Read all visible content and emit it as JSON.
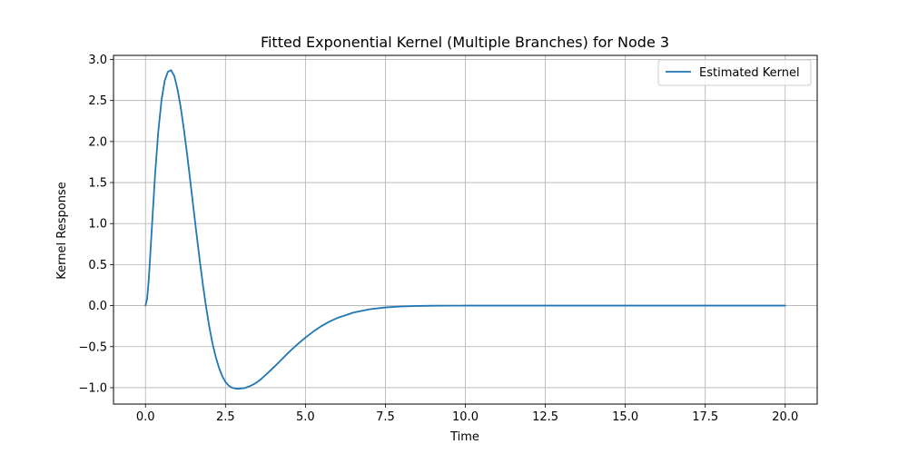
{
  "chart_data": {
    "type": "line",
    "title": "Fitted Exponential Kernel (Multiple Branches) for Node 3",
    "xlabel": "Time",
    "ylabel": "Kernel Response",
    "xlim": [
      -1.0,
      21.0
    ],
    "ylim": [
      -1.2,
      3.05
    ],
    "xticks": [
      0.0,
      2.5,
      5.0,
      7.5,
      10.0,
      12.5,
      15.0,
      17.5,
      20.0
    ],
    "xtick_labels": [
      "0.0",
      "2.5",
      "5.0",
      "7.5",
      "10.0",
      "12.5",
      "15.0",
      "17.5",
      "20.0"
    ],
    "yticks": [
      -1.0,
      -0.5,
      0.0,
      0.5,
      1.0,
      1.5,
      2.0,
      2.5,
      3.0
    ],
    "ytick_labels": [
      "−1.0",
      "−0.5",
      "0.0",
      "0.5",
      "1.0",
      "1.5",
      "2.0",
      "2.5",
      "3.0"
    ],
    "grid": true,
    "legend_position": "top-right",
    "series": [
      {
        "name": "Estimated Kernel",
        "color": "#1f77b4",
        "x": [
          0.0,
          0.05,
          0.1,
          0.2,
          0.3,
          0.4,
          0.5,
          0.6,
          0.7,
          0.8,
          0.9,
          1.0,
          1.1,
          1.2,
          1.3,
          1.4,
          1.5,
          1.6,
          1.7,
          1.8,
          1.9,
          2.0,
          2.1,
          2.2,
          2.3,
          2.4,
          2.5,
          2.6,
          2.7,
          2.8,
          2.9,
          3.0,
          3.1,
          3.2,
          3.3,
          3.4,
          3.5,
          3.6,
          3.8,
          4.0,
          4.2,
          4.4,
          4.6,
          4.8,
          5.0,
          5.25,
          5.5,
          5.75,
          6.0,
          6.5,
          7.0,
          7.5,
          8.0,
          8.5,
          9.0,
          9.5,
          10.0,
          11.0,
          12.0,
          13.0,
          14.0,
          15.0,
          16.0,
          17.0,
          18.0,
          19.0,
          20.0
        ],
        "y": [
          0.0,
          0.08,
          0.3,
          0.95,
          1.6,
          2.12,
          2.5,
          2.74,
          2.85,
          2.87,
          2.8,
          2.64,
          2.42,
          2.15,
          1.85,
          1.52,
          1.19,
          0.86,
          0.54,
          0.24,
          -0.03,
          -0.27,
          -0.47,
          -0.63,
          -0.76,
          -0.86,
          -0.93,
          -0.975,
          -1.0,
          -1.01,
          -1.015,
          -1.01,
          -1.005,
          -0.99,
          -0.975,
          -0.955,
          -0.93,
          -0.9,
          -0.83,
          -0.755,
          -0.68,
          -0.6,
          -0.525,
          -0.455,
          -0.39,
          -0.315,
          -0.25,
          -0.195,
          -0.15,
          -0.085,
          -0.045,
          -0.022,
          -0.01,
          -0.004,
          -0.0015,
          -0.0005,
          0.0,
          0.0,
          0.0,
          0.0,
          0.0,
          0.0,
          0.0,
          0.0,
          0.0,
          0.0,
          0.0
        ]
      }
    ]
  }
}
